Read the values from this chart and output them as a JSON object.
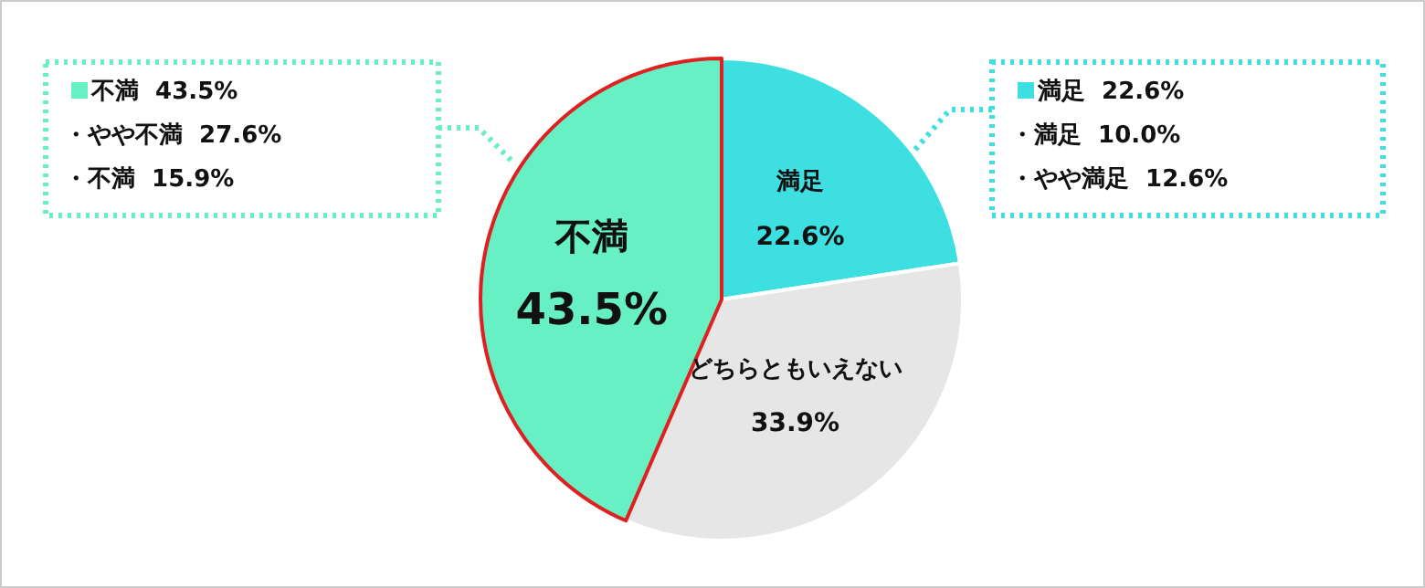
{
  "chart_data": {
    "type": "pie",
    "categories": [
      "満足",
      "どちらともいえない",
      "不満"
    ],
    "values": [
      22.6,
      33.9,
      43.5
    ],
    "colors": [
      "#3ddfe0",
      "#e6e6e6",
      "#66f0c3"
    ],
    "value_labels": [
      "22.6%",
      "33.9%",
      "43.5%"
    ],
    "annotations": [
      "不満  43.5%",
      "・やや不満  27.6%",
      "・不満  15.9%",
      "満足  22.6%",
      "・満足  10.0%",
      "・やや満足  12.6%"
    ]
  }
}
